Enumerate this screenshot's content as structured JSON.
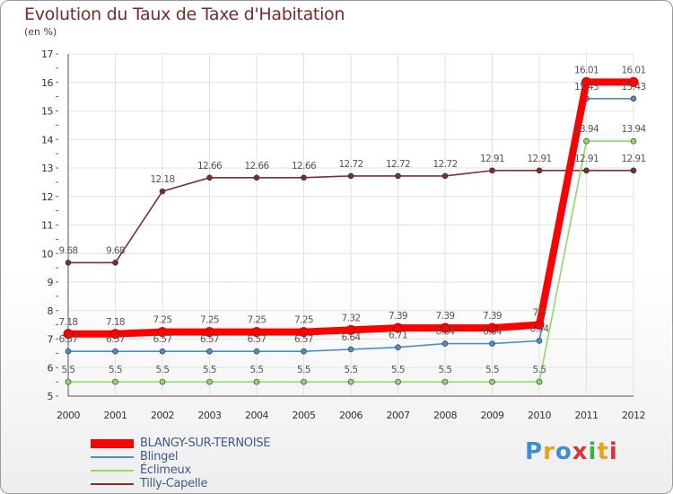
{
  "header": {
    "title": "Evolution du Taux de Taxe d'Habitation",
    "subtitle": "(en %)"
  },
  "logo": {
    "text": "Proxiti"
  },
  "chart_data": {
    "type": "line",
    "title": "Evolution du Taux de Taxe d'Habitation",
    "ylabel": "(en %)",
    "xlabel": "",
    "x": [
      "2000",
      "2001",
      "2002",
      "2003",
      "2004",
      "2005",
      "2006",
      "2007",
      "2008",
      "2009",
      "2010",
      "2011",
      "2012"
    ],
    "ylim": [
      5,
      17
    ],
    "yticks": [
      "5",
      "6",
      "7",
      "8",
      "9",
      "10",
      "11",
      "12",
      "13",
      "14",
      "15",
      "16",
      "17"
    ],
    "legend_position": "bottom-left",
    "series": [
      {
        "name": "BLANGY-SUR-TERNOISE",
        "color": "#ff0000",
        "values": [
          7.18,
          7.18,
          7.25,
          7.25,
          7.25,
          7.25,
          7.32,
          7.39,
          7.39,
          7.39,
          7.5,
          16.01,
          16.01
        ],
        "labels": [
          "7.18",
          "7.18",
          "7.25",
          "7.25",
          "7.25",
          "7.25",
          "7.32",
          "7.39",
          "7.39",
          "7.39",
          "7.5",
          "16.01",
          "16.01"
        ]
      },
      {
        "name": "Blingel",
        "color": "#4a90c6",
        "values": [
          6.57,
          6.57,
          6.57,
          6.57,
          6.57,
          6.57,
          6.64,
          6.71,
          6.84,
          6.84,
          6.94,
          15.43,
          15.43
        ],
        "labels": [
          "6.57",
          "6.57",
          "6.57",
          "6.57",
          "6.57",
          "6.57",
          "6.64",
          "6.71",
          "6.84",
          "6.84",
          "6.94",
          "15.43",
          "15.43"
        ]
      },
      {
        "name": "Éclimeux",
        "color": "#8fd86a",
        "values": [
          5.5,
          5.5,
          5.5,
          5.5,
          5.5,
          5.5,
          5.5,
          5.5,
          5.5,
          5.5,
          5.5,
          13.94,
          13.94
        ],
        "labels": [
          "5.5",
          "5.5",
          "5.5",
          "5.5",
          "5.5",
          "5.5",
          "5.5",
          "5.5",
          "5.5",
          "5.5",
          "5.5",
          "13.94",
          "13.94"
        ]
      },
      {
        "name": "Tilly-Capelle",
        "color": "#7a2e2e",
        "values": [
          9.68,
          9.68,
          12.18,
          12.66,
          12.66,
          12.66,
          12.72,
          12.72,
          12.72,
          12.91,
          12.91,
          12.91,
          12.91
        ],
        "labels": [
          "9.68",
          "9.68",
          "12.18",
          "12.66",
          "12.66",
          "12.66",
          "12.72",
          "12.72",
          "12.72",
          "12.91",
          "12.91",
          "12.91",
          "12.91"
        ]
      }
    ]
  }
}
